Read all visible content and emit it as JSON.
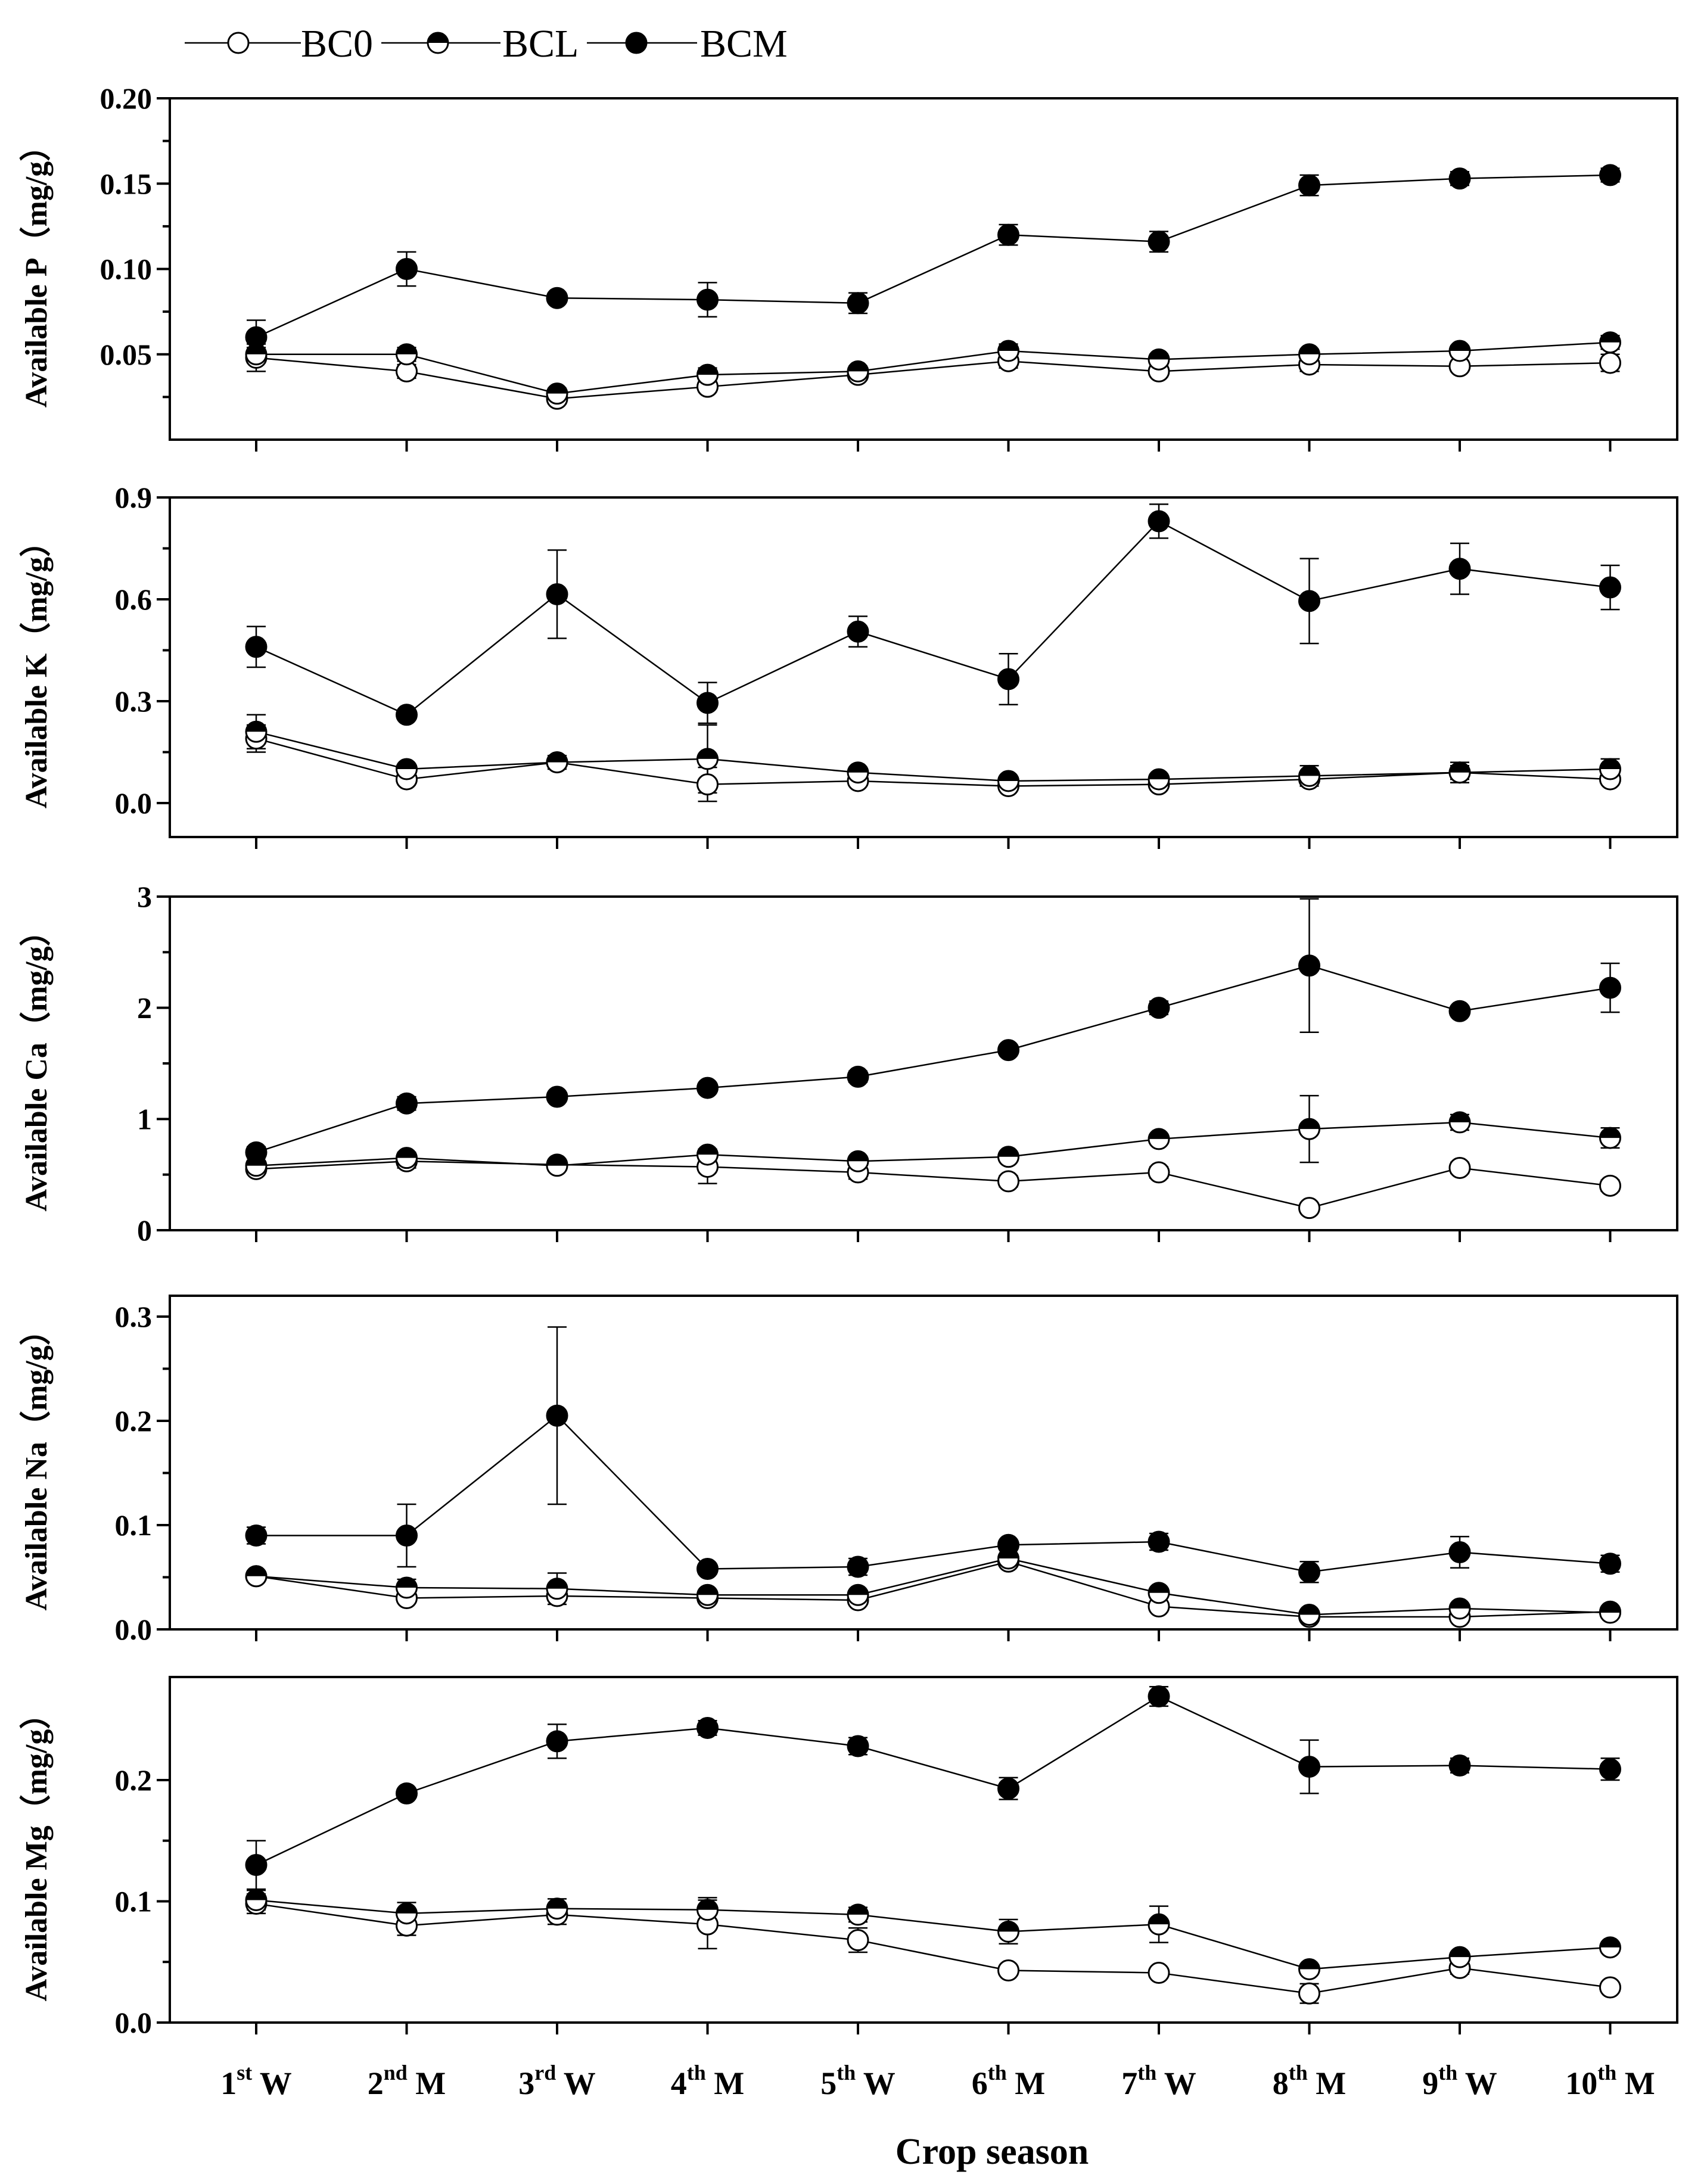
{
  "chart_data": {
    "type": "line",
    "xlabel": "Crop season",
    "categories": [
      {
        "num": "1",
        "sup": "st",
        "suffix": "W"
      },
      {
        "num": "2",
        "sup": "nd",
        "suffix": "M"
      },
      {
        "num": "3",
        "sup": "rd",
        "suffix": "W"
      },
      {
        "num": "4",
        "sup": "th",
        "suffix": "M"
      },
      {
        "num": "5",
        "sup": "th",
        "suffix": "W"
      },
      {
        "num": "6",
        "sup": "th",
        "suffix": "M"
      },
      {
        "num": "7",
        "sup": "th",
        "suffix": "W"
      },
      {
        "num": "8",
        "sup": "th",
        "suffix": "M"
      },
      {
        "num": "9",
        "sup": "th",
        "suffix": "W"
      },
      {
        "num": "10",
        "sup": "th",
        "suffix": "M"
      }
    ],
    "legend": [
      {
        "name": "BC0",
        "marker": "open"
      },
      {
        "name": "BCL",
        "marker": "half"
      },
      {
        "name": "BCM",
        "marker": "filled"
      }
    ],
    "panels": [
      {
        "ylabel": "Available P（mg/g）",
        "ylim": [
          0.0,
          0.2
        ],
        "ticks": [
          0.05,
          0.1,
          0.15,
          0.2
        ],
        "tick_labels": [
          "0.05",
          "0.10",
          "0.15",
          "0.20"
        ],
        "series": [
          {
            "name": "BC0",
            "values": [
              0.048,
              0.04,
              0.024,
              0.031,
              0.038,
              0.046,
              0.04,
              0.044,
              0.043,
              0.045
            ],
            "errors": [
              0.008,
              0.004,
              0.003,
              0.003,
              0.003,
              0.004,
              0.003,
              0.004,
              0.003,
              0.005
            ]
          },
          {
            "name": "BCL",
            "values": [
              0.05,
              0.05,
              0.027,
              0.038,
              0.04,
              0.052,
              0.047,
              0.05,
              0.052,
              0.057
            ],
            "errors": [
              0.004,
              0.004,
              0.003,
              0.004,
              0.003,
              0.004,
              0.003,
              0.003,
              0.003,
              0.004
            ]
          },
          {
            "name": "BCM",
            "values": [
              0.06,
              0.1,
              0.083,
              0.082,
              0.08,
              0.12,
              0.116,
              0.149,
              0.153,
              0.155
            ],
            "errors": [
              0.01,
              0.01,
              0.003,
              0.01,
              0.006,
              0.006,
              0.006,
              0.006,
              0.004,
              0.004
            ]
          }
        ]
      },
      {
        "ylabel": "Available K（mg/g）",
        "ylim": [
          -0.1,
          0.9
        ],
        "ticks": [
          0.0,
          0.3,
          0.6,
          0.9
        ],
        "tick_labels": [
          "0.0",
          "0.3",
          "0.6",
          "0.9"
        ],
        "series": [
          {
            "name": "BC0",
            "values": [
              0.19,
              0.07,
              0.12,
              0.055,
              0.065,
              0.05,
              0.055,
              0.07,
              0.09,
              0.07
            ],
            "errors": [
              0.04,
              0.01,
              0.01,
              0.05,
              0.01,
              0.01,
              0.01,
              0.01,
              0.02,
              0.01
            ]
          },
          {
            "name": "BCL",
            "values": [
              0.21,
              0.1,
              0.12,
              0.13,
              0.09,
              0.065,
              0.07,
              0.08,
              0.09,
              0.1
            ],
            "errors": [
              0.05,
              0.01,
              0.02,
              0.1,
              0.01,
              0.01,
              0.01,
              0.03,
              0.03,
              0.03
            ]
          },
          {
            "name": "BCM",
            "values": [
              0.46,
              0.26,
              0.615,
              0.295,
              0.505,
              0.365,
              0.83,
              0.595,
              0.69,
              0.635
            ],
            "errors": [
              0.06,
              0.01,
              0.13,
              0.06,
              0.045,
              0.075,
              0.05,
              0.125,
              0.075,
              0.065
            ]
          }
        ]
      },
      {
        "ylabel": "Available Ca（mg/g）",
        "ylim": [
          0,
          3
        ],
        "ticks": [
          0,
          1,
          2,
          3
        ],
        "tick_labels": [
          "0",
          "1",
          "2",
          "3"
        ],
        "series": [
          {
            "name": "BC0",
            "values": [
              0.55,
              0.62,
              0.59,
              0.57,
              0.52,
              0.44,
              0.52,
              0.2,
              0.56,
              0.4
            ],
            "errors": [
              0.04,
              0.06,
              0.04,
              0.15,
              0.06,
              0.05,
              0.05,
              0.03,
              0.05,
              0.05
            ]
          },
          {
            "name": "BCL",
            "values": [
              0.58,
              0.65,
              0.58,
              0.68,
              0.62,
              0.66,
              0.82,
              0.91,
              0.97,
              0.83
            ],
            "errors": [
              0.04,
              0.05,
              0.04,
              0.05,
              0.03,
              0.04,
              0.04,
              0.3,
              0.07,
              0.09
            ]
          },
          {
            "name": "BCM",
            "values": [
              0.7,
              1.14,
              1.2,
              1.28,
              1.38,
              1.62,
              2.0,
              2.38,
              1.97,
              2.18
            ],
            "errors": [
              0.05,
              0.06,
              0.04,
              0.04,
              0.05,
              0.04,
              0.06,
              0.6,
              0.04,
              0.22
            ]
          }
        ]
      },
      {
        "ylabel": "Available Na（mg/g）",
        "ylim": [
          0.0,
          0.32
        ],
        "ticks": [
          0.0,
          0.1,
          0.2,
          0.3
        ],
        "tick_labels": [
          "0.0",
          "0.1",
          "0.2",
          "0.3"
        ],
        "series": [
          {
            "name": "BC0",
            "values": [
              0.051,
              0.03,
              0.032,
              0.03,
              0.028,
              0.065,
              0.022,
              0.012,
              0.012,
              0.017
            ],
            "errors": [
              0.003,
              0.004,
              0.004,
              0.003,
              0.003,
              0.004,
              0.004,
              0.003,
              0.004,
              0.004
            ]
          },
          {
            "name": "BCL",
            "values": [
              0.051,
              0.04,
              0.039,
              0.033,
              0.033,
              0.068,
              0.035,
              0.014,
              0.02,
              0.016
            ],
            "errors": [
              0.003,
              0.008,
              0.015,
              0.003,
              0.004,
              0.004,
              0.004,
              0.003,
              0.004,
              0.004
            ]
          },
          {
            "name": "BCM",
            "values": [
              0.09,
              0.09,
              0.205,
              0.058,
              0.06,
              0.081,
              0.084,
              0.055,
              0.074,
              0.063
            ],
            "errors": [
              0.008,
              0.03,
              0.085,
              0.005,
              0.008,
              0.004,
              0.008,
              0.01,
              0.015,
              0.008
            ]
          }
        ]
      },
      {
        "ylabel": "Available Mg（mg/g）",
        "ylim": [
          0.0,
          0.285
        ],
        "ticks": [
          0.0,
          0.1,
          0.2
        ],
        "tick_labels": [
          "0.0",
          "0.1",
          "0.2"
        ],
        "series": [
          {
            "name": "BC0",
            "values": [
              0.098,
              0.08,
              0.089,
              0.081,
              0.068,
              0.043,
              0.041,
              0.024,
              0.045,
              0.029
            ],
            "errors": [
              0.008,
              0.008,
              0.008,
              0.02,
              0.01,
              0.004,
              0.004,
              0.008,
              0.005,
              0.004
            ]
          },
          {
            "name": "BCL",
            "values": [
              0.101,
              0.09,
              0.094,
              0.093,
              0.089,
              0.075,
              0.081,
              0.044,
              0.054,
              0.062
            ],
            "errors": [
              0.008,
              0.009,
              0.008,
              0.01,
              0.006,
              0.01,
              0.015,
              0.004,
              0.004,
              0.004
            ]
          },
          {
            "name": "BCM",
            "values": [
              0.13,
              0.189,
              0.232,
              0.243,
              0.228,
              0.193,
              0.269,
              0.211,
              0.212,
              0.209
            ],
            "errors": [
              0.02,
              0.004,
              0.014,
              0.006,
              0.007,
              0.009,
              0.008,
              0.022,
              0.006,
              0.009
            ]
          }
        ]
      }
    ]
  }
}
